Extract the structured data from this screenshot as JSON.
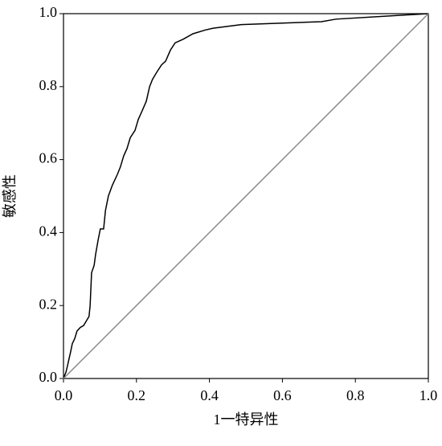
{
  "chart_data": {
    "type": "line",
    "x_label": "1一特异性",
    "y_label": "敏感性",
    "xlim": [
      0,
      1
    ],
    "ylim": [
      0,
      1
    ],
    "xticks": [
      {
        "value": 0,
        "label": "0.0"
      },
      0.2,
      0.4,
      0.6,
      0.8,
      {
        "value": 1,
        "label": "1.0"
      }
    ],
    "yticks": [
      {
        "value": 0,
        "label": "0.0"
      },
      0.2,
      0.4,
      0.6,
      0.8,
      {
        "value": 1,
        "label": "1.0"
      }
    ],
    "series": [
      {
        "color": "#000000",
        "x": [
          0,
          0.007,
          0.011,
          0.015,
          0.02,
          0.024,
          0.031,
          0.037,
          0.046,
          0.055,
          0.064,
          0.07,
          0.073,
          0.077,
          0.084,
          0.088,
          0.095,
          0.101,
          0.11,
          0.115,
          0.123,
          0.134,
          0.148,
          0.156,
          0.165,
          0.174,
          0.183,
          0.196,
          0.205,
          0.214,
          0.227,
          0.236,
          0.244,
          0.256,
          0.269,
          0.28,
          0.293,
          0.306,
          0.328,
          0.355,
          0.388,
          0.41,
          0.487,
          0.707,
          0.747,
          0.883,
          1
        ],
        "values": [
          0,
          0.018,
          0.035,
          0.053,
          0.075,
          0.095,
          0.11,
          0.13,
          0.14,
          0.145,
          0.16,
          0.17,
          0.2,
          0.29,
          0.31,
          0.34,
          0.38,
          0.41,
          0.41,
          0.46,
          0.5,
          0.53,
          0.56,
          0.58,
          0.61,
          0.63,
          0.66,
          0.68,
          0.71,
          0.73,
          0.76,
          0.8,
          0.82,
          0.84,
          0.86,
          0.87,
          0.9,
          0.92,
          0.93,
          0.945,
          0.955,
          0.96,
          0.97,
          0.978,
          0.985,
          0.993,
          1
        ]
      },
      {
        "color": "#888888",
        "x": [
          0,
          1
        ],
        "values": [
          0,
          1
        ]
      }
    ]
  }
}
